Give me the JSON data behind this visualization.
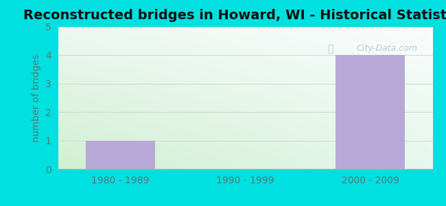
{
  "title": "Reconstructed bridges in Howard, WI - Historical Statistics",
  "categories": [
    "1980 - 1989",
    "1990 - 1999",
    "2000 - 2009"
  ],
  "values": [
    1,
    0,
    4
  ],
  "bar_color": "#b8a8d8",
  "ylabel": "number of bridges",
  "ylim": [
    0,
    5
  ],
  "yticks": [
    0,
    1,
    2,
    3,
    4,
    5
  ],
  "background_outer": "#00e0e0",
  "title_fontsize": 14,
  "axis_label_color": "#557777",
  "tick_label_color": "#557777",
  "bar_width": 0.55,
  "watermark_text": "City-Data.com",
  "grid_color": "#ddeedc",
  "title_color": "#111111"
}
